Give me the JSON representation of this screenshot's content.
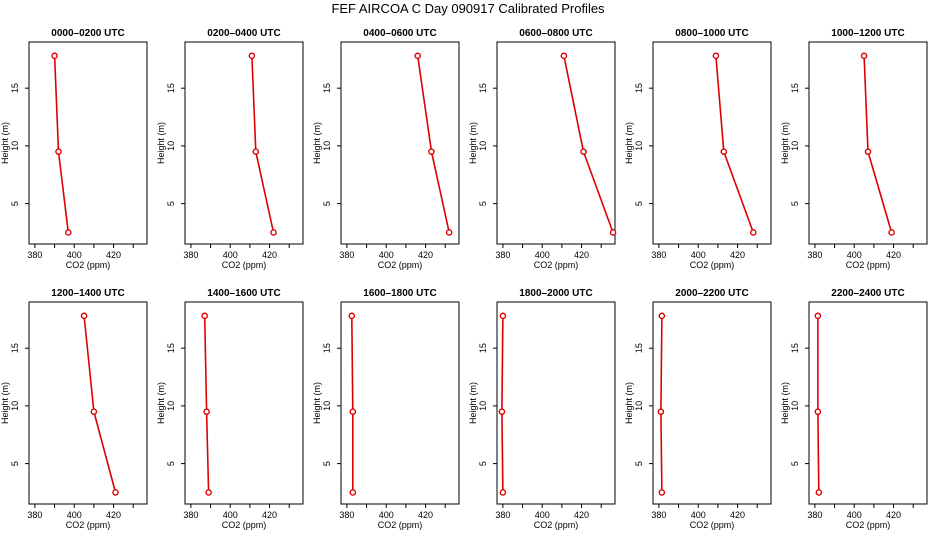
{
  "title": "FEF AIRCOA C  Day 090917  Calibrated Profiles",
  "colors": {
    "series": "#dd0000",
    "axis": "#000000",
    "background": "#ffffff"
  },
  "chart_data": [
    {
      "type": "line",
      "title": "0000–0200 UTC",
      "xlabel": "CO2 (ppm)",
      "ylabel": "Height (m)",
      "xlim": [
        377,
        437
      ],
      "ylim": [
        1.5,
        19
      ],
      "xticks": [
        380,
        400,
        420
      ],
      "yticks": [
        5,
        10,
        15
      ],
      "grid": false,
      "x": [
        397,
        392,
        390
      ],
      "y": [
        2.5,
        9.5,
        17.8
      ]
    },
    {
      "type": "line",
      "title": "0200–0400 UTC",
      "xlabel": "CO2 (ppm)",
      "ylabel": "Height (m)",
      "xlim": [
        377,
        437
      ],
      "ylim": [
        1.5,
        19
      ],
      "xticks": [
        380,
        400,
        420
      ],
      "yticks": [
        5,
        10,
        15
      ],
      "grid": false,
      "x": [
        422,
        413,
        411
      ],
      "y": [
        2.5,
        9.5,
        17.8
      ]
    },
    {
      "type": "line",
      "title": "0400–0600 UTC",
      "xlabel": "CO2 (ppm)",
      "ylabel": "Height (m)",
      "xlim": [
        377,
        437
      ],
      "ylim": [
        1.5,
        19
      ],
      "xticks": [
        380,
        400,
        420
      ],
      "yticks": [
        5,
        10,
        15
      ],
      "grid": false,
      "x": [
        432,
        423,
        416
      ],
      "y": [
        2.5,
        9.5,
        17.8
      ]
    },
    {
      "type": "line",
      "title": "0600–0800 UTC",
      "xlabel": "CO2 (ppm)",
      "ylabel": "Height (m)",
      "xlim": [
        377,
        437
      ],
      "ylim": [
        1.5,
        19
      ],
      "xticks": [
        380,
        400,
        420
      ],
      "yticks": [
        5,
        10,
        15
      ],
      "grid": false,
      "x": [
        436,
        421,
        411
      ],
      "y": [
        2.5,
        9.5,
        17.8
      ]
    },
    {
      "type": "line",
      "title": "0800–1000 UTC",
      "xlabel": "CO2 (ppm)",
      "ylabel": "Height (m)",
      "xlim": [
        377,
        437
      ],
      "ylim": [
        1.5,
        19
      ],
      "xticks": [
        380,
        400,
        420
      ],
      "yticks": [
        5,
        10,
        15
      ],
      "grid": false,
      "x": [
        428,
        413,
        409
      ],
      "y": [
        2.5,
        9.5,
        17.8
      ]
    },
    {
      "type": "line",
      "title": "1000–1200 UTC",
      "xlabel": "CO2 (ppm)",
      "ylabel": "Height (m)",
      "xlim": [
        377,
        437
      ],
      "ylim": [
        1.5,
        19
      ],
      "xticks": [
        380,
        400,
        420
      ],
      "yticks": [
        5,
        10,
        15
      ],
      "grid": false,
      "x": [
        419,
        407,
        405
      ],
      "y": [
        2.5,
        9.5,
        17.8
      ]
    },
    {
      "type": "line",
      "title": "1200–1400 UTC",
      "xlabel": "CO2 (ppm)",
      "ylabel": "Height (m)",
      "xlim": [
        377,
        437
      ],
      "ylim": [
        1.5,
        19
      ],
      "xticks": [
        380,
        400,
        420
      ],
      "yticks": [
        5,
        10,
        15
      ],
      "grid": false,
      "x": [
        421,
        410,
        405
      ],
      "y": [
        2.5,
        9.5,
        17.8
      ]
    },
    {
      "type": "line",
      "title": "1400–1600 UTC",
      "xlabel": "CO2 (ppm)",
      "ylabel": "Height (m)",
      "xlim": [
        377,
        437
      ],
      "ylim": [
        1.5,
        19
      ],
      "xticks": [
        380,
        400,
        420
      ],
      "yticks": [
        5,
        10,
        15
      ],
      "grid": false,
      "x": [
        389,
        388,
        387
      ],
      "y": [
        2.5,
        9.5,
        17.8
      ]
    },
    {
      "type": "line",
      "title": "1600–1800 UTC",
      "xlabel": "CO2 (ppm)",
      "ylabel": "Height (m)",
      "xlim": [
        377,
        437
      ],
      "ylim": [
        1.5,
        19
      ],
      "xticks": [
        380,
        400,
        420
      ],
      "yticks": [
        5,
        10,
        15
      ],
      "grid": false,
      "x": [
        383,
        383,
        382.5
      ],
      "y": [
        2.5,
        9.5,
        17.8
      ]
    },
    {
      "type": "line",
      "title": "1800–2000 UTC",
      "xlabel": "CO2 (ppm)",
      "ylabel": "Height (m)",
      "xlim": [
        377,
        437
      ],
      "ylim": [
        1.5,
        19
      ],
      "xticks": [
        380,
        400,
        420
      ],
      "yticks": [
        5,
        10,
        15
      ],
      "grid": false,
      "x": [
        380,
        379.5,
        380
      ],
      "y": [
        2.5,
        9.5,
        17.8
      ]
    },
    {
      "type": "line",
      "title": "2000–2200 UTC",
      "xlabel": "CO2 (ppm)",
      "ylabel": "Height (m)",
      "xlim": [
        377,
        437
      ],
      "ylim": [
        1.5,
        19
      ],
      "xticks": [
        380,
        400,
        420
      ],
      "yticks": [
        5,
        10,
        15
      ],
      "grid": false,
      "x": [
        381.5,
        381,
        381.5
      ],
      "y": [
        2.5,
        9.5,
        17.8
      ]
    },
    {
      "type": "line",
      "title": "2200–2400 UTC",
      "xlabel": "CO2 (ppm)",
      "ylabel": "Height (m)",
      "xlim": [
        377,
        437
      ],
      "ylim": [
        1.5,
        19
      ],
      "xticks": [
        380,
        400,
        420
      ],
      "yticks": [
        5,
        10,
        15
      ],
      "grid": false,
      "x": [
        382,
        381.5,
        381.5
      ],
      "y": [
        2.5,
        9.5,
        17.8
      ]
    }
  ]
}
